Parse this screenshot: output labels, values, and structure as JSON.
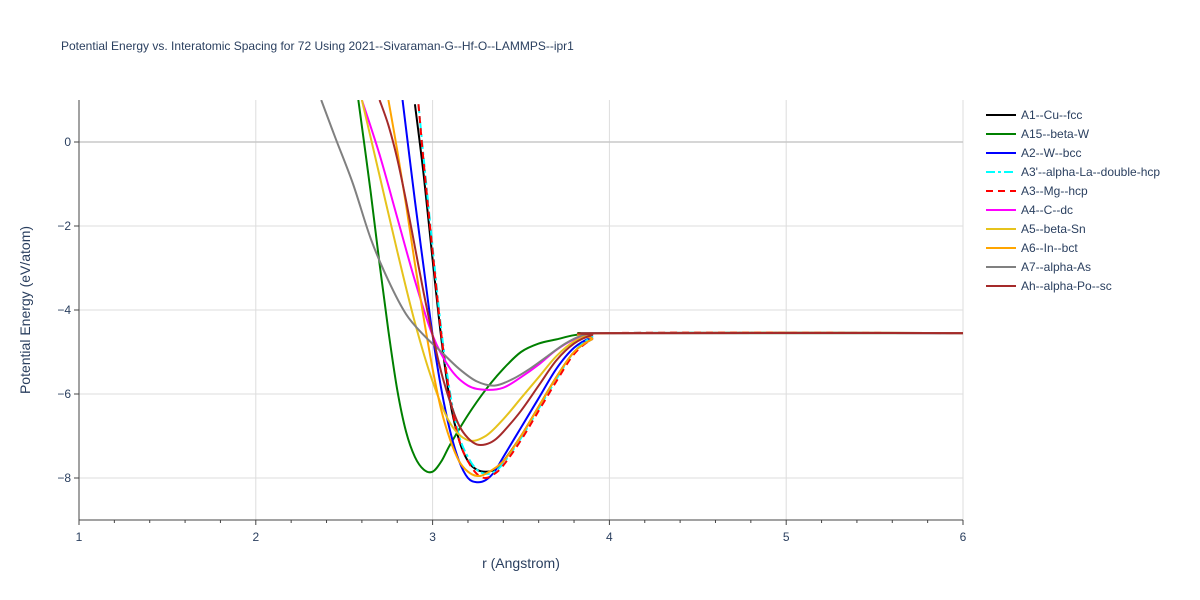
{
  "chart_data": {
    "type": "line",
    "title": "Potential Energy vs. Interatomic Spacing for 72 Using 2021--Sivaraman-G--Hf-O--LAMMPS--ipr1",
    "xlabel": "r (Angstrom)",
    "ylabel": "Potential Energy (eV/atom)",
    "xlim": [
      1,
      6
    ],
    "ylim": [
      -9,
      1
    ],
    "xticks": [
      1,
      2,
      3,
      4,
      5,
      6
    ],
    "xtick_labels": [
      "1",
      "2",
      "3",
      "4",
      "5",
      "6"
    ],
    "yticks": [
      0,
      -2,
      -4,
      -6,
      -8
    ],
    "ytick_labels": [
      "0",
      "−2",
      "−4",
      "−6",
      "−8"
    ],
    "grid": true,
    "legend_position": "right",
    "series": [
      {
        "name": "A1--Cu--fcc",
        "color": "#000000",
        "dash": "solid",
        "x": [
          2.9,
          2.95,
          3.0,
          3.05,
          3.1,
          3.15,
          3.2,
          3.25,
          3.3,
          3.35,
          3.4,
          3.5,
          3.6,
          3.7,
          3.8,
          3.9,
          4.0,
          6.0
        ],
        "y": [
          0.9,
          -0.8,
          -2.8,
          -4.7,
          -6.2,
          -7.1,
          -7.6,
          -7.8,
          -7.85,
          -7.8,
          -7.6,
          -7.0,
          -6.3,
          -5.6,
          -5.0,
          -4.7,
          -4.55,
          -4.55
        ]
      },
      {
        "name": "A15--beta-W",
        "color": "#008000",
        "dash": "solid",
        "x": [
          2.58,
          2.65,
          2.7,
          2.75,
          2.8,
          2.85,
          2.9,
          2.95,
          3.0,
          3.05,
          3.1,
          3.2,
          3.3,
          3.4,
          3.5,
          3.6,
          3.7,
          3.8,
          3.9,
          4.0,
          6.0
        ],
        "y": [
          1.0,
          -1.2,
          -2.9,
          -4.5,
          -5.9,
          -6.9,
          -7.5,
          -7.8,
          -7.85,
          -7.6,
          -7.2,
          -6.5,
          -5.9,
          -5.4,
          -5.0,
          -4.8,
          -4.7,
          -4.6,
          -4.55,
          -4.55,
          -4.55
        ]
      },
      {
        "name": "A2--W--bcc",
        "color": "#0000ff",
        "dash": "solid",
        "x": [
          2.83,
          2.9,
          2.95,
          3.0,
          3.05,
          3.1,
          3.15,
          3.2,
          3.25,
          3.3,
          3.35,
          3.4,
          3.5,
          3.6,
          3.7,
          3.8,
          3.9,
          4.0,
          6.0
        ],
        "y": [
          1.0,
          -1.4,
          -3.0,
          -4.6,
          -5.9,
          -6.9,
          -7.6,
          -8.0,
          -8.1,
          -8.05,
          -7.85,
          -7.5,
          -6.8,
          -6.1,
          -5.4,
          -4.9,
          -4.65,
          -4.55,
          -4.55
        ]
      },
      {
        "name": "A3'--alpha-La--double-hcp",
        "color": "#00ffff",
        "dash": "dashdot",
        "x": [
          2.92,
          2.95,
          3.0,
          3.05,
          3.1,
          3.15,
          3.2,
          3.25,
          3.3,
          3.35,
          3.4,
          3.5,
          3.6,
          3.7,
          3.8,
          3.9,
          4.0,
          6.0
        ],
        "y": [
          0.9,
          -0.4,
          -2.5,
          -4.5,
          -6.0,
          -7.0,
          -7.5,
          -7.8,
          -7.9,
          -7.85,
          -7.65,
          -7.05,
          -6.35,
          -5.65,
          -5.0,
          -4.65,
          -4.55,
          -4.55
        ]
      },
      {
        "name": "A3--Mg--hcp",
        "color": "#ff0000",
        "dash": "dash",
        "x": [
          2.92,
          2.95,
          3.0,
          3.05,
          3.1,
          3.15,
          3.2,
          3.25,
          3.3,
          3.35,
          3.4,
          3.5,
          3.6,
          3.7,
          3.8,
          3.9,
          4.0,
          6.0
        ],
        "y": [
          0.9,
          -0.5,
          -2.6,
          -4.6,
          -6.1,
          -7.1,
          -7.6,
          -7.9,
          -8.0,
          -7.9,
          -7.7,
          -7.1,
          -6.4,
          -5.7,
          -5.05,
          -4.7,
          -4.55,
          -4.55
        ]
      },
      {
        "name": "A4--C--dc",
        "color": "#ff00ff",
        "dash": "solid",
        "x": [
          2.6,
          2.7,
          2.8,
          2.9,
          3.0,
          3.1,
          3.2,
          3.3,
          3.4,
          3.5,
          3.6,
          3.7,
          3.8,
          3.9,
          4.0,
          6.0
        ],
        "y": [
          1.0,
          -0.3,
          -1.8,
          -3.3,
          -4.6,
          -5.4,
          -5.8,
          -5.9,
          -5.85,
          -5.6,
          -5.3,
          -4.95,
          -4.7,
          -4.6,
          -4.55,
          -4.55
        ]
      },
      {
        "name": "A5--beta-Sn",
        "color": "#e6c31c",
        "dash": "solid",
        "x": [
          2.6,
          2.7,
          2.8,
          2.9,
          3.0,
          3.1,
          3.2,
          3.3,
          3.4,
          3.5,
          3.6,
          3.7,
          3.8,
          3.9,
          4.0,
          6.0
        ],
        "y": [
          1.0,
          -0.8,
          -2.6,
          -4.3,
          -5.7,
          -6.7,
          -7.1,
          -7.0,
          -6.6,
          -6.1,
          -5.6,
          -5.1,
          -4.75,
          -4.6,
          -4.55,
          -4.55
        ]
      },
      {
        "name": "A6--In--bct",
        "color": "#ffa500",
        "dash": "solid",
        "x": [
          2.75,
          2.8,
          2.85,
          2.9,
          2.95,
          3.0,
          3.05,
          3.1,
          3.15,
          3.2,
          3.25,
          3.3,
          3.4,
          3.5,
          3.6,
          3.7,
          3.8,
          3.9,
          4.0,
          6.0
        ],
        "y": [
          1.0,
          -0.2,
          -1.5,
          -2.9,
          -4.2,
          -5.4,
          -6.4,
          -7.1,
          -7.6,
          -7.85,
          -7.95,
          -7.9,
          -7.6,
          -7.0,
          -6.3,
          -5.6,
          -5.0,
          -4.7,
          -4.55,
          -4.55
        ]
      },
      {
        "name": "A7--alpha-As",
        "color": "#808080",
        "dash": "solid",
        "x": [
          2.37,
          2.45,
          2.55,
          2.65,
          2.75,
          2.85,
          2.95,
          3.05,
          3.15,
          3.25,
          3.35,
          3.45,
          3.55,
          3.65,
          3.75,
          3.85,
          3.95,
          4.0,
          6.0
        ],
        "y": [
          1.0,
          0.1,
          -1.0,
          -2.3,
          -3.3,
          -4.1,
          -4.6,
          -5.0,
          -5.4,
          -5.7,
          -5.8,
          -5.65,
          -5.4,
          -5.1,
          -4.8,
          -4.6,
          -4.55,
          -4.55,
          -4.55
        ]
      },
      {
        "name": "Ah--alpha-Po--sc",
        "color": "#a52a2a",
        "dash": "solid",
        "x": [
          2.7,
          2.75,
          2.8,
          2.85,
          2.9,
          2.95,
          3.0,
          3.05,
          3.1,
          3.15,
          3.2,
          3.25,
          3.3,
          3.35,
          3.4,
          3.5,
          3.6,
          3.7,
          3.8,
          3.9,
          4.0,
          6.0
        ],
        "y": [
          1.0,
          0.4,
          -0.4,
          -1.4,
          -2.5,
          -3.6,
          -4.6,
          -5.5,
          -6.2,
          -6.75,
          -7.05,
          -7.2,
          -7.2,
          -7.1,
          -6.9,
          -6.4,
          -5.8,
          -5.2,
          -4.8,
          -4.6,
          -4.55,
          -4.55
        ]
      }
    ]
  }
}
